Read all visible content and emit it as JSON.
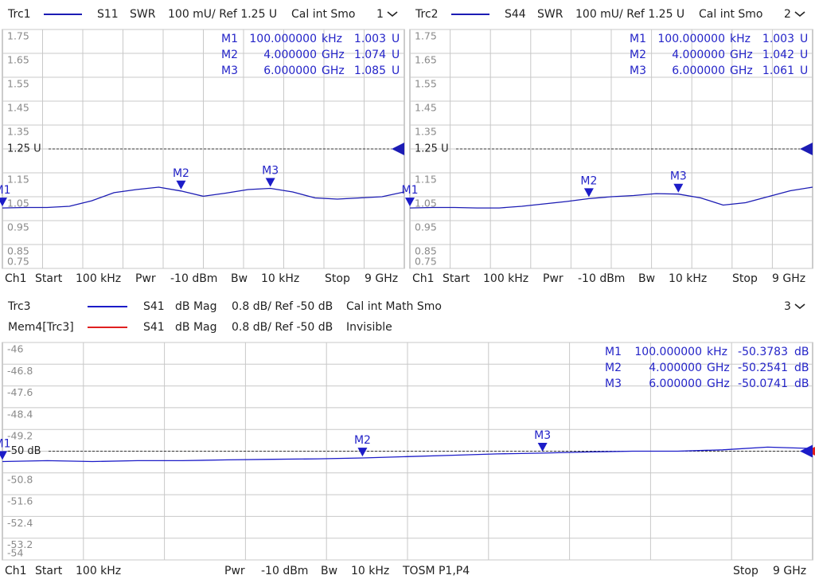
{
  "chart_data": [
    {
      "type": "line",
      "channel": "1",
      "series": [
        {
          "name": "Trc1",
          "color": "#1c1cb4",
          "param": "S11",
          "format": "SWR",
          "scale": "100 mU/ Ref 1.25 U",
          "info": "Cal int Smo",
          "values": [
            1.003,
            1.005,
            1.005,
            1.01,
            1.033,
            1.067,
            1.08,
            1.09,
            1.074,
            1.052,
            1.065,
            1.08,
            1.085,
            1.07,
            1.045,
            1.04,
            1.045,
            1.05,
            1.07
          ]
        }
      ],
      "x": [
        0.0001,
        0.5,
        1,
        1.5,
        2,
        2.5,
        3,
        3.5,
        4,
        4.5,
        5,
        5.5,
        6,
        6.5,
        7,
        7.5,
        8,
        8.5,
        9
      ],
      "xlim": [
        0.0001,
        9
      ],
      "ylim": [
        0.75,
        1.75
      ],
      "yticks": [
        1.75,
        1.65,
        1.55,
        1.45,
        1.35,
        {
          "value": 1.25,
          "label": "1.25 U"
        },
        1.15,
        1.05,
        0.95,
        0.85,
        0.75
      ],
      "ref": 1.25,
      "markers": [
        {
          "label": "M1",
          "freq": {
            "value": 0.0001,
            "label": "100.000000"
          },
          "freq_unit": "kHz",
          "value": 1.003,
          "unit": "U"
        },
        {
          "label": "M2",
          "freq": {
            "value": 4,
            "label": "4.000000"
          },
          "freq_unit": "GHz",
          "value": 1.074,
          "unit": "U"
        },
        {
          "label": "M3",
          "freq": {
            "value": 6,
            "label": "6.000000"
          },
          "freq_unit": "GHz",
          "value": 1.085,
          "unit": "U"
        }
      ],
      "footer": [
        "Ch1",
        "Start",
        "100 kHz",
        "Pwr",
        "-10 dBm",
        "Bw",
        "10 kHz",
        "Stop",
        "9 GHz"
      ]
    },
    {
      "type": "line",
      "channel": "2",
      "series": [
        {
          "name": "Trc2",
          "color": "#1c1cb4",
          "param": "S44",
          "format": "SWR",
          "scale": "100 mU/ Ref 1.25 U",
          "info": "Cal int Smo",
          "values": [
            1.003,
            1.005,
            1.005,
            1.003,
            1.003,
            1.01,
            1.02,
            1.03,
            1.042,
            1.05,
            1.055,
            1.063,
            1.061,
            1.045,
            1.015,
            1.025,
            1.05,
            1.075,
            1.09
          ]
        }
      ],
      "x": [
        0.0001,
        0.5,
        1,
        1.5,
        2,
        2.5,
        3,
        3.5,
        4,
        4.5,
        5,
        5.5,
        6,
        6.5,
        7,
        7.5,
        8,
        8.5,
        9
      ],
      "xlim": [
        0.0001,
        9
      ],
      "ylim": [
        0.75,
        1.75
      ],
      "yticks": [
        1.75,
        1.65,
        1.55,
        1.45,
        1.35,
        {
          "value": 1.25,
          "label": "1.25 U"
        },
        1.15,
        1.05,
        0.95,
        0.85,
        0.75
      ],
      "ref": 1.25,
      "markers": [
        {
          "label": "M1",
          "freq": {
            "value": 0.0001,
            "label": "100.000000"
          },
          "freq_unit": "kHz",
          "value": 1.003,
          "unit": "U"
        },
        {
          "label": "M2",
          "freq": {
            "value": 4,
            "label": "4.000000"
          },
          "freq_unit": "GHz",
          "value": 1.042,
          "unit": "U"
        },
        {
          "label": "M3",
          "freq": {
            "value": 6,
            "label": "6.000000"
          },
          "freq_unit": "GHz",
          "value": 1.061,
          "unit": "U"
        }
      ],
      "footer": [
        "Ch1",
        "Start",
        "100 kHz",
        "Pwr",
        "-10 dBm",
        "Bw",
        "10 kHz",
        "Stop",
        "9 GHz"
      ]
    },
    {
      "type": "line",
      "channel": "3",
      "series": [
        {
          "name": "Trc3",
          "color": "#1c1cc8",
          "param": "S41",
          "format": "dB Mag",
          "scale": "0.8 dB/ Ref -50 dB",
          "info": "Cal int Math Smo",
          "values": [
            -50.38,
            -50.35,
            -50.38,
            -50.35,
            -50.35,
            -50.32,
            -50.3,
            -50.28,
            -50.25,
            -50.2,
            -50.15,
            -50.1,
            -50.07,
            -50.03,
            -50.0,
            -50.0,
            -49.95,
            -49.85,
            -49.9
          ]
        },
        {
          "name": "Mem4[Trc3]",
          "color": "#e02020",
          "param": "S41",
          "format": "dB Mag",
          "scale": "0.8 dB/ Ref -50 dB",
          "info": "Invisible",
          "visible": false
        }
      ],
      "x": [
        0.0001,
        0.5,
        1,
        1.5,
        2,
        2.5,
        3,
        3.5,
        4,
        4.5,
        5,
        5.5,
        6,
        6.5,
        7,
        7.5,
        8,
        8.5,
        9
      ],
      "xlim": [
        0.0001,
        9
      ],
      "ylim": [
        -54,
        -46
      ],
      "yticks": [
        -46,
        -46.8,
        -47.6,
        -48.4,
        -49.2,
        {
          "value": -50,
          "label": "-50 dB"
        },
        -50.8,
        -51.6,
        -52.4,
        -53.2,
        -54
      ],
      "ref": -50,
      "markers": [
        {
          "label": "M1",
          "freq": {
            "value": 0.0001,
            "label": "100.000000"
          },
          "freq_unit": "kHz",
          "value": -50.3783,
          "unit": "dB"
        },
        {
          "label": "M2",
          "freq": {
            "value": 4,
            "label": "4.000000"
          },
          "freq_unit": "GHz",
          "value": -50.2541,
          "unit": "dB"
        },
        {
          "label": "M3",
          "freq": {
            "value": 6,
            "label": "6.000000"
          },
          "freq_unit": "GHz",
          "value": -50.0741,
          "unit": "dB"
        }
      ],
      "footer": [
        "Ch1",
        "Start",
        "100 kHz",
        "Pwr",
        "-10 dBm",
        "Bw",
        "10 kHz",
        "TOSM P1,P4",
        "Stop",
        "9 GHz"
      ]
    }
  ]
}
